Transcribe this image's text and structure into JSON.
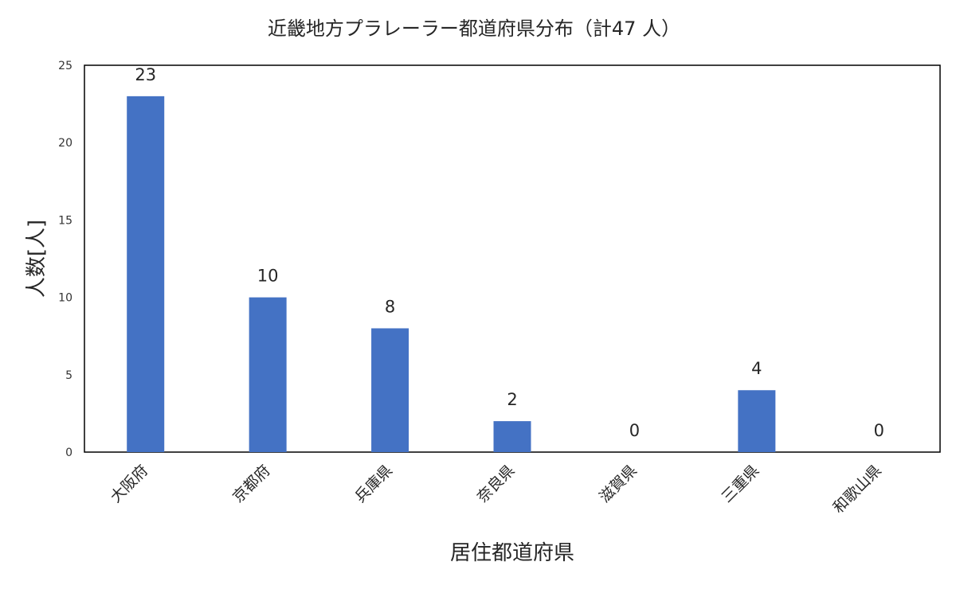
{
  "chart_data": {
    "type": "bar",
    "title": "近畿地方プラレーラー都道府県分布（計47 人）",
    "xlabel": "居住都道府県",
    "ylabel": "人数[人]",
    "categories": [
      "大阪府",
      "京都府",
      "兵庫県",
      "奈良県",
      "滋賀県",
      "三重県",
      "和歌山県"
    ],
    "values": [
      23,
      10,
      8,
      2,
      0,
      4,
      0
    ],
    "ylim": [
      0,
      25
    ],
    "yticks": [
      0,
      5,
      10,
      15,
      20,
      25
    ],
    "data_labels": true,
    "grid": false,
    "legend": "none",
    "bar_color": "#4472C4"
  }
}
